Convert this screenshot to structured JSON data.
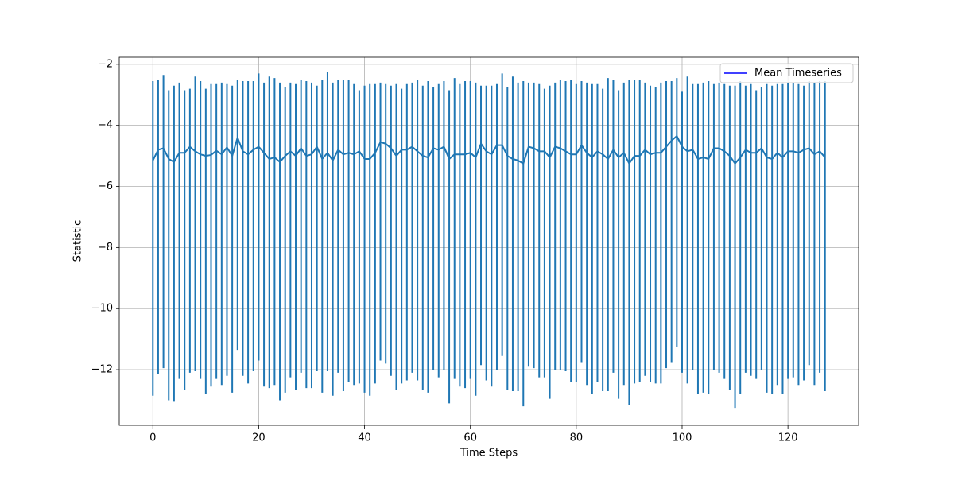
{
  "chart_data": {
    "type": "errorbar_line",
    "xlabel": "Time Steps",
    "ylabel": "Statistic",
    "x": [
      0,
      1,
      2,
      3,
      4,
      5,
      6,
      7,
      8,
      9,
      10,
      11,
      12,
      13,
      14,
      15,
      16,
      17,
      18,
      19,
      20,
      21,
      22,
      23,
      24,
      25,
      26,
      27,
      28,
      29,
      30,
      31,
      32,
      33,
      34,
      35,
      36,
      37,
      38,
      39,
      40,
      41,
      42,
      43,
      44,
      45,
      46,
      47,
      48,
      49,
      50,
      51,
      52,
      53,
      54,
      55,
      56,
      57,
      58,
      59,
      60,
      61,
      62,
      63,
      64,
      65,
      66,
      67,
      68,
      69,
      70,
      71,
      72,
      73,
      74,
      75,
      76,
      77,
      78,
      79,
      80,
      81,
      82,
      83,
      84,
      85,
      86,
      87,
      88,
      89,
      90,
      91,
      92,
      93,
      94,
      95,
      96,
      97,
      98,
      99,
      100,
      101,
      102,
      103,
      104,
      105,
      106,
      107,
      108,
      109,
      110,
      111,
      112,
      113,
      114,
      115,
      116,
      117,
      118,
      119,
      120,
      121,
      122,
      123,
      124,
      125,
      126,
      127
    ],
    "series": [
      {
        "name": "Mean Timeseries",
        "color": "#1f77b4",
        "legend_color": "#0000ff",
        "values": [
          -5.15,
          -4.8,
          -4.75,
          -5.1,
          -5.2,
          -4.9,
          -4.9,
          -4.7,
          -4.85,
          -4.95,
          -5.0,
          -4.97,
          -4.83,
          -4.95,
          -4.72,
          -5.0,
          -4.4,
          -4.85,
          -4.95,
          -4.8,
          -4.7,
          -4.9,
          -5.1,
          -5.05,
          -5.2,
          -5.0,
          -4.85,
          -5.0,
          -4.75,
          -5.0,
          -4.95,
          -4.7,
          -5.1,
          -4.9,
          -5.15,
          -4.8,
          -4.95,
          -4.9,
          -4.95,
          -4.85,
          -5.1,
          -5.1,
          -4.9,
          -4.55,
          -4.6,
          -4.75,
          -5.0,
          -4.8,
          -4.8,
          -4.7,
          -4.85,
          -5.0,
          -5.05,
          -4.75,
          -4.8,
          -4.7,
          -5.1,
          -4.95,
          -4.95,
          -4.95,
          -4.9,
          -5.05,
          -4.6,
          -4.85,
          -4.95,
          -4.65,
          -4.65,
          -5.0,
          -5.1,
          -5.15,
          -5.25,
          -4.7,
          -4.75,
          -4.85,
          -4.85,
          -5.05,
          -4.7,
          -4.75,
          -4.85,
          -4.95,
          -4.95,
          -4.65,
          -4.9,
          -5.05,
          -4.85,
          -4.95,
          -5.1,
          -4.8,
          -5.05,
          -4.9,
          -5.25,
          -5.0,
          -5.0,
          -4.8,
          -4.95,
          -4.9,
          -4.9,
          -4.7,
          -4.5,
          -4.35,
          -4.7,
          -4.85,
          -4.8,
          -5.1,
          -5.05,
          -5.1,
          -4.75,
          -4.75,
          -4.85,
          -5.0,
          -5.25,
          -5.05,
          -4.8,
          -4.9,
          -4.9,
          -4.75,
          -5.05,
          -5.1,
          -4.9,
          -5.05,
          -4.85,
          -4.85,
          -4.9,
          -4.8,
          -4.75,
          -4.95,
          -4.85,
          -5.05
        ],
        "upper": [
          -2.55,
          -2.5,
          -2.35,
          -2.85,
          -2.7,
          -2.6,
          -2.85,
          -2.8,
          -2.4,
          -2.55,
          -2.8,
          -2.65,
          -2.65,
          -2.6,
          -2.65,
          -2.7,
          -2.5,
          -2.55,
          -2.55,
          -2.55,
          -2.3,
          -2.6,
          -2.4,
          -2.45,
          -2.6,
          -2.75,
          -2.6,
          -2.65,
          -2.5,
          -2.55,
          -2.6,
          -2.7,
          -2.5,
          -2.25,
          -2.6,
          -2.5,
          -2.5,
          -2.5,
          -2.65,
          -2.85,
          -2.7,
          -2.65,
          -2.65,
          -2.6,
          -2.65,
          -2.7,
          -2.65,
          -2.8,
          -2.65,
          -2.6,
          -2.5,
          -2.7,
          -2.55,
          -2.75,
          -2.65,
          -2.55,
          -2.85,
          -2.45,
          -2.65,
          -2.55,
          -2.55,
          -2.6,
          -2.7,
          -2.7,
          -2.7,
          -2.65,
          -2.3,
          -2.75,
          -2.4,
          -2.6,
          -2.55,
          -2.6,
          -2.6,
          -2.65,
          -2.8,
          -2.7,
          -2.6,
          -2.5,
          -2.55,
          -2.5,
          -2.65,
          -2.55,
          -2.6,
          -2.65,
          -2.65,
          -2.8,
          -2.45,
          -2.5,
          -2.85,
          -2.6,
          -2.5,
          -2.5,
          -2.5,
          -2.6,
          -2.7,
          -2.75,
          -2.6,
          -2.55,
          -2.55,
          -2.45,
          -2.9,
          -2.4,
          -2.65,
          -2.65,
          -2.6,
          -2.55,
          -2.65,
          -2.6,
          -2.65,
          -2.7,
          -2.7,
          -2.55,
          -2.7,
          -2.65,
          -2.85,
          -2.75,
          -2.65,
          -2.7,
          -2.65,
          -2.65,
          -2.6,
          -2.6,
          -2.65,
          -2.7,
          -2.55,
          -2.6,
          -2.55,
          -2.55
        ],
        "lower": [
          -12.85,
          -12.15,
          -11.95,
          -13.0,
          -13.05,
          -12.3,
          -12.65,
          -12.1,
          -12.05,
          -12.3,
          -12.8,
          -12.55,
          -12.3,
          -12.5,
          -12.2,
          -12.75,
          -11.35,
          -12.2,
          -12.45,
          -12.05,
          -11.7,
          -12.55,
          -12.6,
          -12.5,
          -13.0,
          -12.75,
          -12.25,
          -12.65,
          -12.1,
          -12.6,
          -12.6,
          -12.05,
          -12.75,
          -12.05,
          -12.85,
          -12.1,
          -12.7,
          -12.4,
          -12.5,
          -12.45,
          -12.75,
          -12.85,
          -12.45,
          -11.7,
          -11.8,
          -12.2,
          -12.65,
          -12.45,
          -12.35,
          -12.1,
          -12.35,
          -12.65,
          -12.75,
          -12.0,
          -12.25,
          -12.0,
          -13.1,
          -12.3,
          -12.55,
          -12.6,
          -12.3,
          -12.85,
          -11.85,
          -12.35,
          -12.55,
          -12.0,
          -11.55,
          -12.65,
          -12.7,
          -12.7,
          -13.2,
          -11.9,
          -11.95,
          -12.25,
          -12.25,
          -12.95,
          -12.0,
          -12.0,
          -12.05,
          -12.4,
          -12.4,
          -11.75,
          -12.5,
          -12.8,
          -12.4,
          -12.7,
          -12.7,
          -12.1,
          -12.95,
          -12.5,
          -13.15,
          -12.45,
          -12.4,
          -12.2,
          -12.4,
          -12.45,
          -12.45,
          -11.95,
          -11.75,
          -11.25,
          -12.1,
          -12.45,
          -12.0,
          -12.8,
          -12.75,
          -12.8,
          -12.0,
          -12.1,
          -12.3,
          -12.65,
          -13.25,
          -12.8,
          -12.1,
          -12.2,
          -12.3,
          -12.0,
          -12.75,
          -12.8,
          -12.5,
          -12.8,
          -12.3,
          -12.25,
          -12.5,
          -12.35,
          -11.85,
          -12.5,
          -12.1,
          -12.7
        ]
      }
    ],
    "xlim": [
      -6.35,
      133.35
    ],
    "ylim": [
      -13.82,
      -1.77
    ],
    "xticks": [
      0,
      20,
      40,
      60,
      80,
      100,
      120
    ],
    "yticks": [
      {
        "value": -12,
        "label": "−12"
      },
      {
        "value": -10,
        "label": "−10"
      },
      {
        "value": -8,
        "label": "−8"
      },
      {
        "value": -6,
        "label": "−6"
      },
      {
        "value": -4,
        "label": "−4"
      },
      {
        "value": -2,
        "label": "−2"
      }
    ],
    "grid": true,
    "legend": "upper right"
  }
}
